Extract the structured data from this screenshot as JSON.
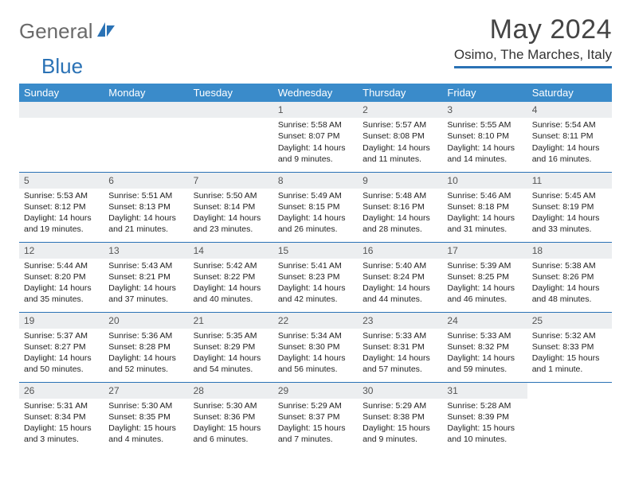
{
  "brand": {
    "part1": "General",
    "part2": "Blue"
  },
  "title": "May 2024",
  "location": "Osimo, The Marches, Italy",
  "colors": {
    "header_bg": "#3a8bca",
    "rule": "#2a72b5",
    "daynum_bg": "#eceef0",
    "brand_gray": "#6a6a6a",
    "brand_blue": "#2a72b5"
  },
  "weekdays": [
    "Sunday",
    "Monday",
    "Tuesday",
    "Wednesday",
    "Thursday",
    "Friday",
    "Saturday"
  ],
  "weeks": [
    [
      {
        "n": "",
        "lines": [
          "",
          "",
          "",
          ""
        ]
      },
      {
        "n": "",
        "lines": [
          "",
          "",
          "",
          ""
        ]
      },
      {
        "n": "",
        "lines": [
          "",
          "",
          "",
          ""
        ]
      },
      {
        "n": "1",
        "lines": [
          "Sunrise: 5:58 AM",
          "Sunset: 8:07 PM",
          "Daylight: 14 hours",
          "and 9 minutes."
        ]
      },
      {
        "n": "2",
        "lines": [
          "Sunrise: 5:57 AM",
          "Sunset: 8:08 PM",
          "Daylight: 14 hours",
          "and 11 minutes."
        ]
      },
      {
        "n": "3",
        "lines": [
          "Sunrise: 5:55 AM",
          "Sunset: 8:10 PM",
          "Daylight: 14 hours",
          "and 14 minutes."
        ]
      },
      {
        "n": "4",
        "lines": [
          "Sunrise: 5:54 AM",
          "Sunset: 8:11 PM",
          "Daylight: 14 hours",
          "and 16 minutes."
        ]
      }
    ],
    [
      {
        "n": "5",
        "lines": [
          "Sunrise: 5:53 AM",
          "Sunset: 8:12 PM",
          "Daylight: 14 hours",
          "and 19 minutes."
        ]
      },
      {
        "n": "6",
        "lines": [
          "Sunrise: 5:51 AM",
          "Sunset: 8:13 PM",
          "Daylight: 14 hours",
          "and 21 minutes."
        ]
      },
      {
        "n": "7",
        "lines": [
          "Sunrise: 5:50 AM",
          "Sunset: 8:14 PM",
          "Daylight: 14 hours",
          "and 23 minutes."
        ]
      },
      {
        "n": "8",
        "lines": [
          "Sunrise: 5:49 AM",
          "Sunset: 8:15 PM",
          "Daylight: 14 hours",
          "and 26 minutes."
        ]
      },
      {
        "n": "9",
        "lines": [
          "Sunrise: 5:48 AM",
          "Sunset: 8:16 PM",
          "Daylight: 14 hours",
          "and 28 minutes."
        ]
      },
      {
        "n": "10",
        "lines": [
          "Sunrise: 5:46 AM",
          "Sunset: 8:18 PM",
          "Daylight: 14 hours",
          "and 31 minutes."
        ]
      },
      {
        "n": "11",
        "lines": [
          "Sunrise: 5:45 AM",
          "Sunset: 8:19 PM",
          "Daylight: 14 hours",
          "and 33 minutes."
        ]
      }
    ],
    [
      {
        "n": "12",
        "lines": [
          "Sunrise: 5:44 AM",
          "Sunset: 8:20 PM",
          "Daylight: 14 hours",
          "and 35 minutes."
        ]
      },
      {
        "n": "13",
        "lines": [
          "Sunrise: 5:43 AM",
          "Sunset: 8:21 PM",
          "Daylight: 14 hours",
          "and 37 minutes."
        ]
      },
      {
        "n": "14",
        "lines": [
          "Sunrise: 5:42 AM",
          "Sunset: 8:22 PM",
          "Daylight: 14 hours",
          "and 40 minutes."
        ]
      },
      {
        "n": "15",
        "lines": [
          "Sunrise: 5:41 AM",
          "Sunset: 8:23 PM",
          "Daylight: 14 hours",
          "and 42 minutes."
        ]
      },
      {
        "n": "16",
        "lines": [
          "Sunrise: 5:40 AM",
          "Sunset: 8:24 PM",
          "Daylight: 14 hours",
          "and 44 minutes."
        ]
      },
      {
        "n": "17",
        "lines": [
          "Sunrise: 5:39 AM",
          "Sunset: 8:25 PM",
          "Daylight: 14 hours",
          "and 46 minutes."
        ]
      },
      {
        "n": "18",
        "lines": [
          "Sunrise: 5:38 AM",
          "Sunset: 8:26 PM",
          "Daylight: 14 hours",
          "and 48 minutes."
        ]
      }
    ],
    [
      {
        "n": "19",
        "lines": [
          "Sunrise: 5:37 AM",
          "Sunset: 8:27 PM",
          "Daylight: 14 hours",
          "and 50 minutes."
        ]
      },
      {
        "n": "20",
        "lines": [
          "Sunrise: 5:36 AM",
          "Sunset: 8:28 PM",
          "Daylight: 14 hours",
          "and 52 minutes."
        ]
      },
      {
        "n": "21",
        "lines": [
          "Sunrise: 5:35 AM",
          "Sunset: 8:29 PM",
          "Daylight: 14 hours",
          "and 54 minutes."
        ]
      },
      {
        "n": "22",
        "lines": [
          "Sunrise: 5:34 AM",
          "Sunset: 8:30 PM",
          "Daylight: 14 hours",
          "and 56 minutes."
        ]
      },
      {
        "n": "23",
        "lines": [
          "Sunrise: 5:33 AM",
          "Sunset: 8:31 PM",
          "Daylight: 14 hours",
          "and 57 minutes."
        ]
      },
      {
        "n": "24",
        "lines": [
          "Sunrise: 5:33 AM",
          "Sunset: 8:32 PM",
          "Daylight: 14 hours",
          "and 59 minutes."
        ]
      },
      {
        "n": "25",
        "lines": [
          "Sunrise: 5:32 AM",
          "Sunset: 8:33 PM",
          "Daylight: 15 hours",
          "and 1 minute."
        ]
      }
    ],
    [
      {
        "n": "26",
        "lines": [
          "Sunrise: 5:31 AM",
          "Sunset: 8:34 PM",
          "Daylight: 15 hours",
          "and 3 minutes."
        ]
      },
      {
        "n": "27",
        "lines": [
          "Sunrise: 5:30 AM",
          "Sunset: 8:35 PM",
          "Daylight: 15 hours",
          "and 4 minutes."
        ]
      },
      {
        "n": "28",
        "lines": [
          "Sunrise: 5:30 AM",
          "Sunset: 8:36 PM",
          "Daylight: 15 hours",
          "and 6 minutes."
        ]
      },
      {
        "n": "29",
        "lines": [
          "Sunrise: 5:29 AM",
          "Sunset: 8:37 PM",
          "Daylight: 15 hours",
          "and 7 minutes."
        ]
      },
      {
        "n": "30",
        "lines": [
          "Sunrise: 5:29 AM",
          "Sunset: 8:38 PM",
          "Daylight: 15 hours",
          "and 9 minutes."
        ]
      },
      {
        "n": "31",
        "lines": [
          "Sunrise: 5:28 AM",
          "Sunset: 8:39 PM",
          "Daylight: 15 hours",
          "and 10 minutes."
        ]
      },
      {
        "n": "",
        "lines": [
          "",
          "",
          "",
          ""
        ]
      }
    ]
  ]
}
